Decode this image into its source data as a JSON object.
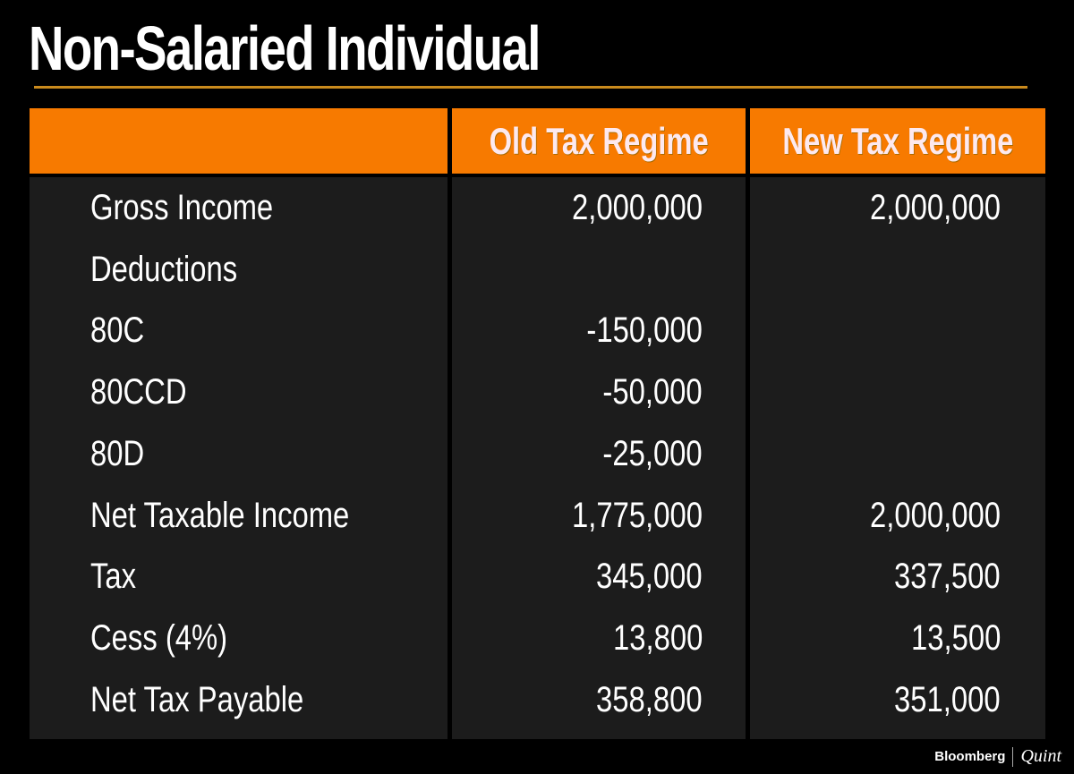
{
  "title": "Non-Salaried Individual",
  "colors": {
    "header": "#f77a00",
    "rule": "#c98a1d",
    "cell_bg": "#1c1c1c",
    "background": "#000000"
  },
  "table": {
    "headers": [
      "",
      "Old Tax Regime",
      "New Tax Regime"
    ],
    "rows": [
      {
        "label": "Gross Income",
        "old": "2,000,000",
        "new": "2,000,000"
      },
      {
        "label": "Deductions",
        "old": "",
        "new": ""
      },
      {
        "label": "80C",
        "old": "-150,000",
        "new": ""
      },
      {
        "label": "80CCD",
        "old": "-50,000",
        "new": ""
      },
      {
        "label": "80D",
        "old": "-25,000",
        "new": ""
      },
      {
        "label": "Net Taxable Income",
        "old": "1,775,000",
        "new": "2,000,000"
      },
      {
        "label": "Tax",
        "old": "345,000",
        "new": "337,500"
      },
      {
        "label": "Cess (4%)",
        "old": "13,800",
        "new": "13,500"
      },
      {
        "label": "Net Tax Payable",
        "old": "358,800",
        "new": "351,000"
      }
    ]
  },
  "footer": {
    "brand": "Bloomberg",
    "brand2": "Quint"
  }
}
